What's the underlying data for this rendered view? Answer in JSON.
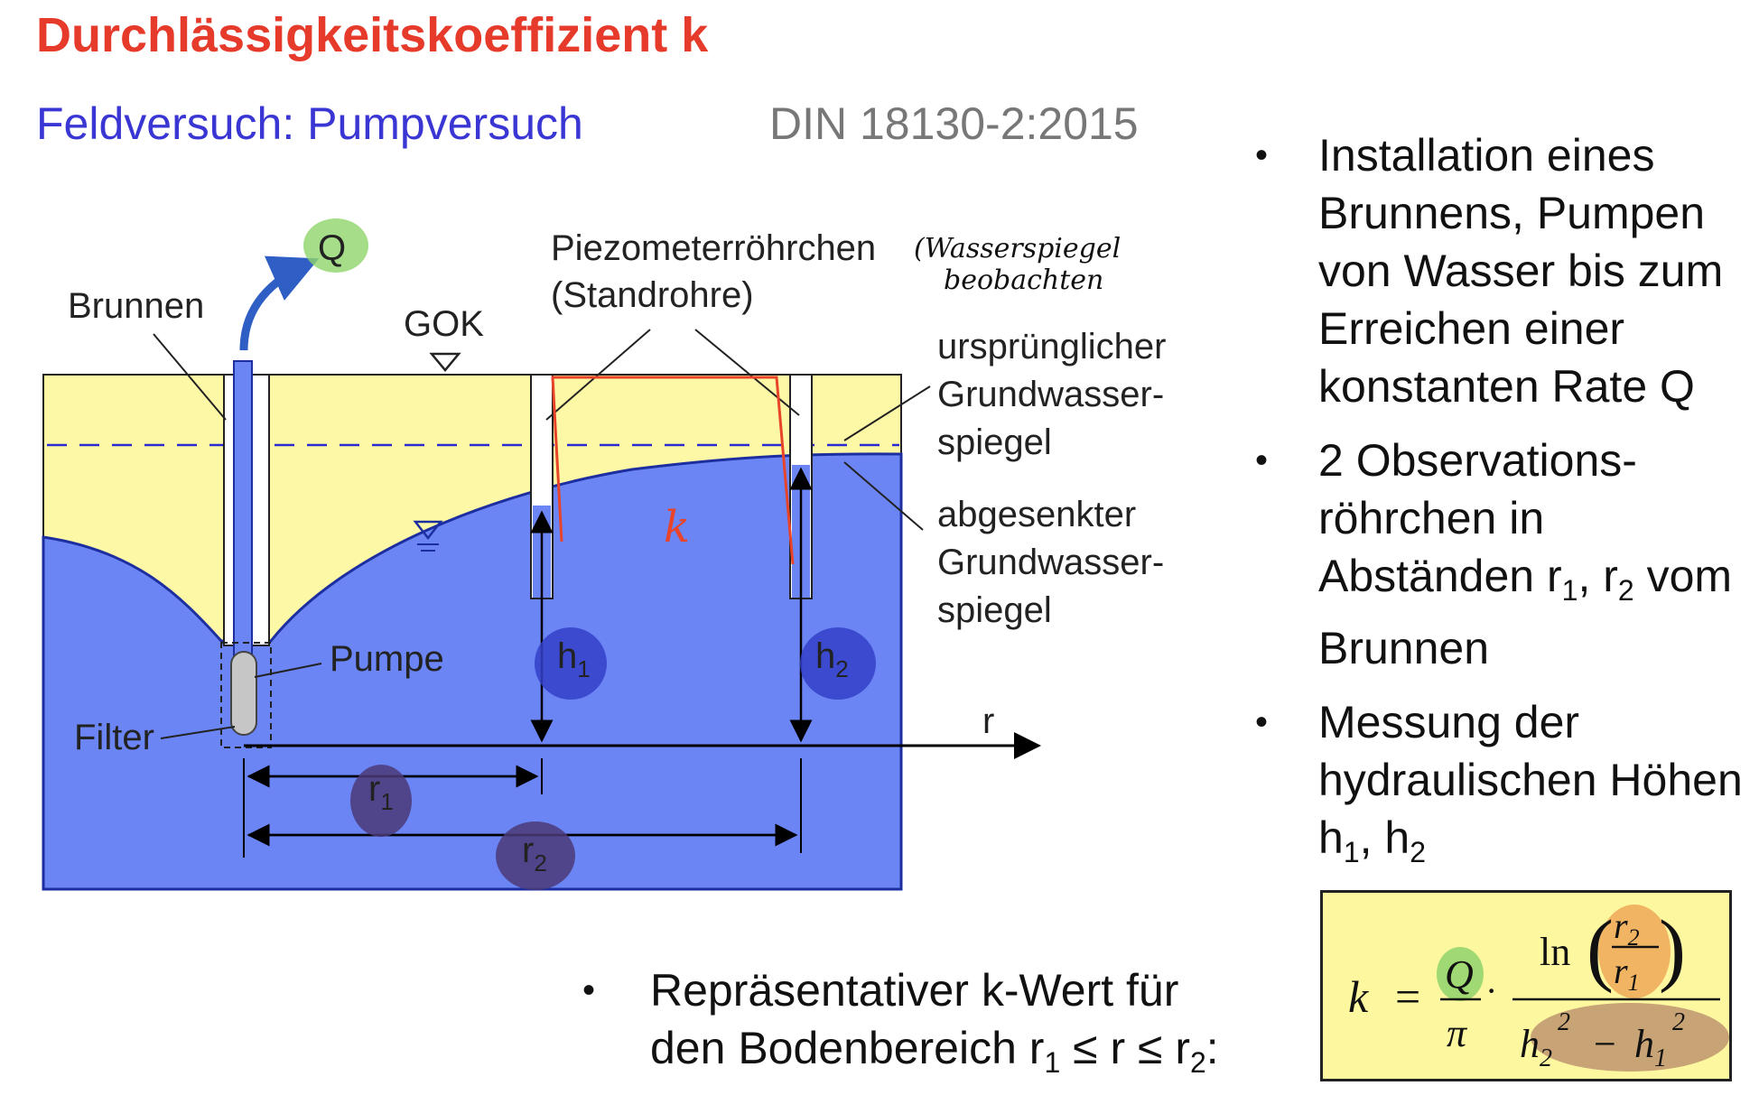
{
  "header": {
    "title": "Durchlässigkeitskoeffizient k",
    "subtitle": "Feldversuch: Pumpversuch",
    "standard": "DIN 18130-2:2015"
  },
  "diagram": {
    "labels": {
      "q": "Q",
      "brunnen": "Brunnen",
      "gok": "GOK",
      "piezometer_line1": "Piezometerröhrchen",
      "piezometer_line2": "(Standrohre)",
      "handwritten_note_line1": "(Wasserspiegel",
      "handwritten_note_line2": "beobachten",
      "original_line1": "ursprünglicher",
      "original_line2": "Grundwasser-",
      "original_line3": "spiegel",
      "lowered_line1": "abgesenkter",
      "lowered_line2": "Grundwasser-",
      "lowered_line3": "spiegel",
      "pumpe": "Pumpe",
      "filter": "Filter",
      "h1": "h",
      "h1_sub": "1",
      "h2": "h",
      "h2_sub": "2",
      "r_axis": "r",
      "r1": "r",
      "r1_sub": "1",
      "r2": "r",
      "r2_sub": "2",
      "handwritten_k": "k"
    },
    "colors": {
      "soil": "#fdf8a6",
      "water": "#6b85f5",
      "title_red": "#e63a2b",
      "subtitle_blue": "#3a36d4",
      "q_highlight": "#8fd46b",
      "h_highlight": "#3340c8",
      "r_highlight": "#4b3a78",
      "annotation_red": "#e8442a"
    }
  },
  "bullets": [
    {
      "text": "Installation eines Brunnens, Pumpen von Wasser bis zum Erreichen einer konstanten Rate Q"
    },
    {
      "pre": "2 Observations-röhrchen in Abständen r",
      "s1": "1",
      "mid": ", r",
      "s2": "2",
      "post": " vom Brunnen"
    },
    {
      "pre": "Messung der hydraulischen Höhen h",
      "s1": "1",
      "mid": ", h",
      "s2": "2"
    }
  ],
  "bottom_bullet": {
    "line1": "Repräsentativer k-Wert für",
    "line2_pre": "den Bodenbereich r",
    "line2_s1": "1",
    "line2_mid": " ≤ r ≤ r",
    "line2_s2": "2",
    "line2_post": ":"
  },
  "formula": {
    "k": "k",
    "eq": "=",
    "Q": "Q",
    "pi": "π",
    "dot": "·",
    "ln": "ln",
    "r": "r",
    "sub1": "1",
    "sub2": "2",
    "h": "h",
    "sq": "2",
    "minus": "−"
  }
}
